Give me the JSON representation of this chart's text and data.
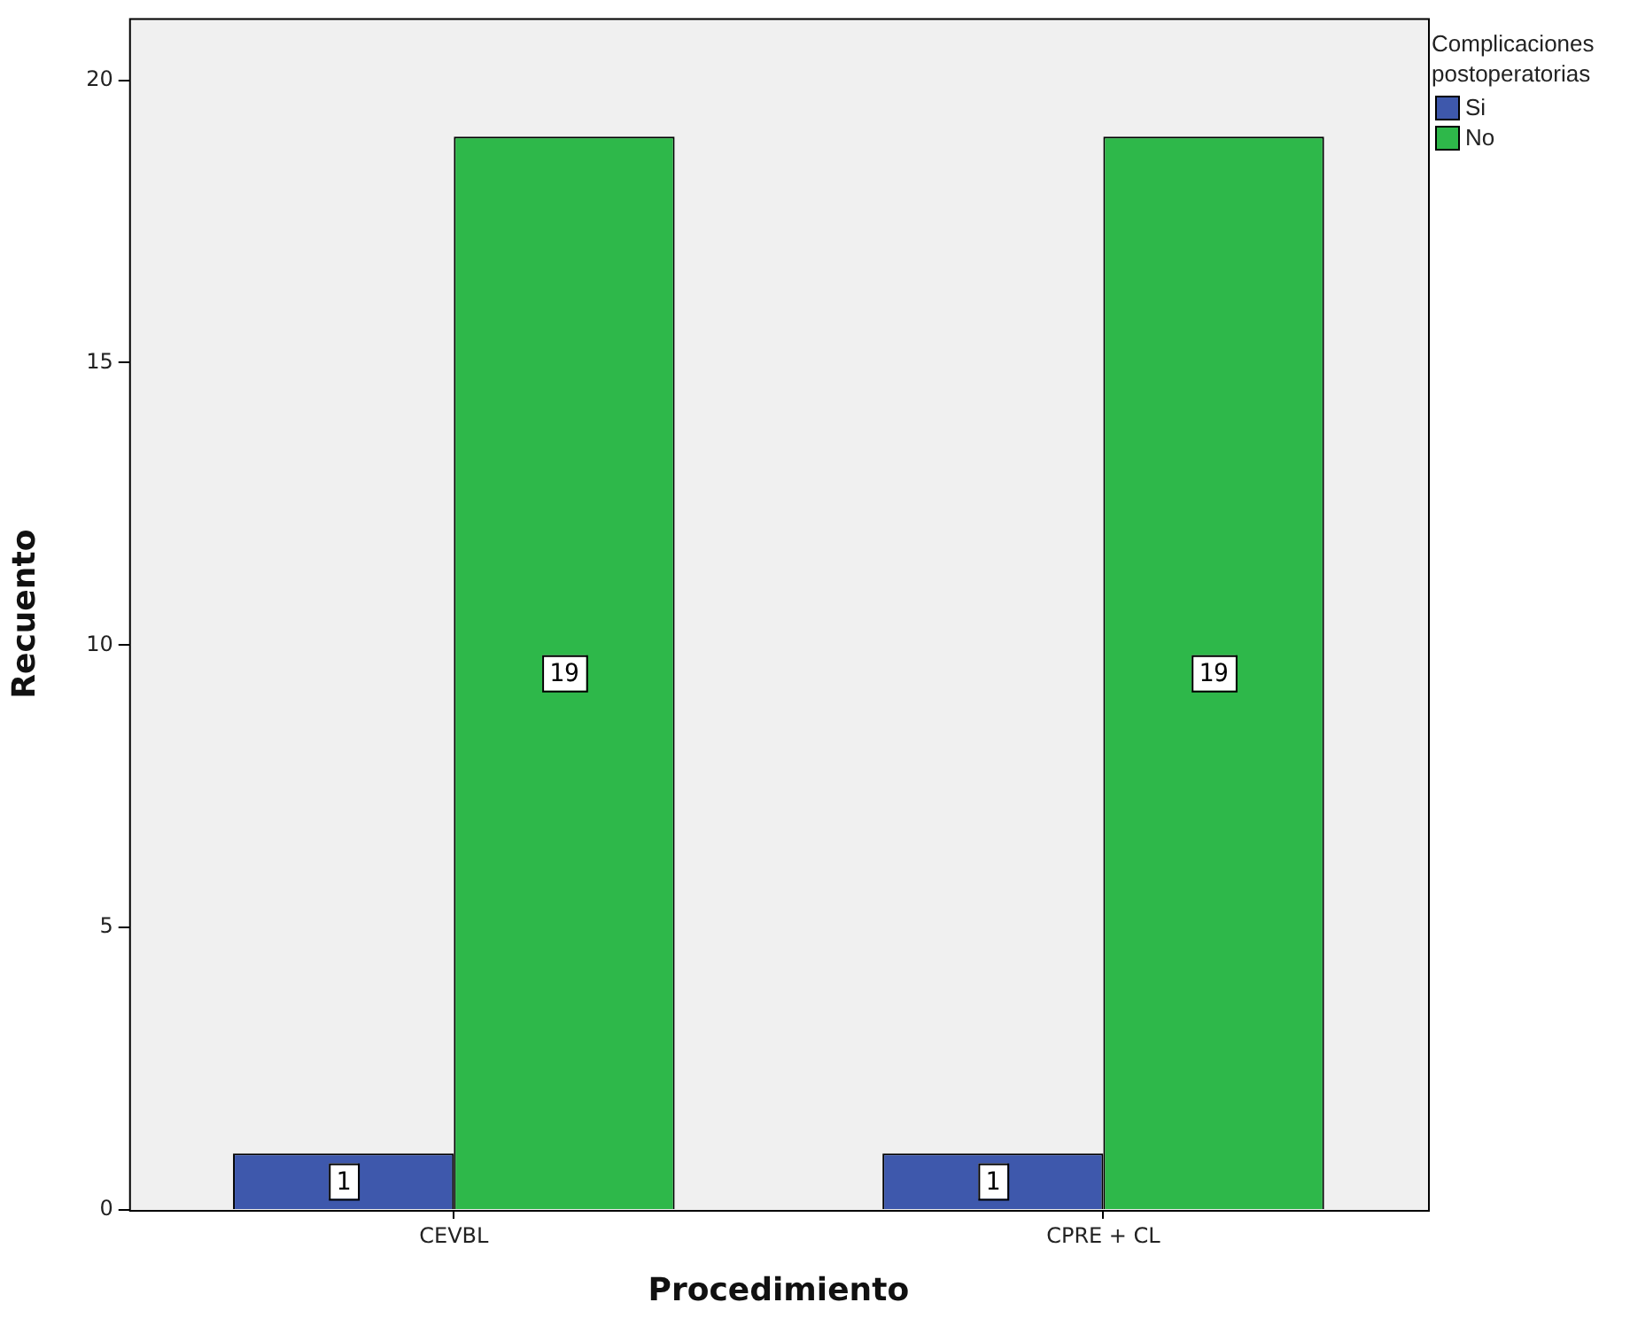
{
  "chart_data": {
    "type": "bar",
    "xlabel": "Procedimiento",
    "ylabel": "Recuento",
    "legend_title": "Complicaciones postoperatorias",
    "categories": [
      "CEVBL",
      "CPRE + CL"
    ],
    "series": [
      {
        "name": "Si",
        "color": "#3e58ac",
        "values": [
          1,
          1
        ]
      },
      {
        "name": "No",
        "color": "#2eb84a",
        "values": [
          19,
          19
        ]
      }
    ],
    "ylim": [
      0,
      21.1
    ],
    "yticks": [
      0,
      5,
      10,
      15,
      20
    ],
    "grid": false,
    "legend": "right",
    "data_labels": true
  }
}
